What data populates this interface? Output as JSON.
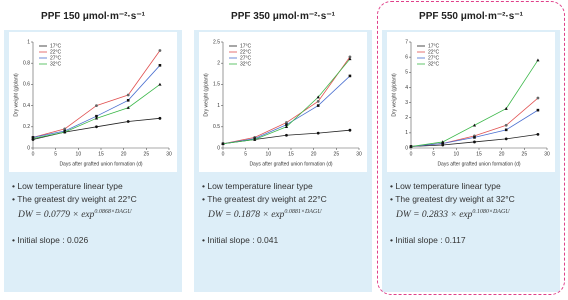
{
  "chart_data": [
    {
      "type": "line",
      "title": "PPF 150 μmol·m⁻²·s⁻¹",
      "x_label": "Days after grafted union formation (d)",
      "y_label": "Dry weight (g/plant)",
      "x": [
        0,
        7,
        14,
        21,
        28
      ],
      "xlim": [
        0,
        30
      ],
      "xticks": [
        0,
        5,
        10,
        15,
        20,
        25,
        30
      ],
      "ylim": [
        0,
        1
      ],
      "yticks": [
        0,
        0.2,
        0.4,
        0.6,
        0.8,
        1
      ],
      "series": [
        {
          "name": "17°C",
          "color": "#222222",
          "values": [
            0.08,
            0.15,
            0.2,
            0.25,
            0.28
          ]
        },
        {
          "name": "22°C",
          "color": "#e05050",
          "values": [
            0.1,
            0.18,
            0.4,
            0.5,
            0.92
          ]
        },
        {
          "name": "27°C",
          "color": "#4a6fd0",
          "values": [
            0.1,
            0.16,
            0.3,
            0.45,
            0.78
          ]
        },
        {
          "name": "32°C",
          "color": "#3cb84a",
          "values": [
            0.09,
            0.15,
            0.28,
            0.38,
            0.6
          ]
        }
      ],
      "notes": [
        "Low temperature linear type",
        "The greatest dry weight at 22°C"
      ],
      "equation": "DW = 0.0779 × exp",
      "equation_exponent": "0.0868×DAGU",
      "slope": "Initial slope : 0.026"
    },
    {
      "type": "line",
      "title": "PPF 350 μmol·m⁻²·s⁻¹",
      "x_label": "Days after grafted union formation (d)",
      "y_label": "Dry weight (g/plant)",
      "x": [
        0,
        7,
        14,
        21,
        28
      ],
      "xlim": [
        0,
        30
      ],
      "xticks": [
        0,
        5,
        10,
        15,
        20,
        25,
        30
      ],
      "ylim": [
        0,
        2.5
      ],
      "yticks": [
        0,
        0.5,
        1,
        1.5,
        2,
        2.5
      ],
      "series": [
        {
          "name": "17°C",
          "color": "#222222",
          "values": [
            0.1,
            0.2,
            0.3,
            0.35,
            0.42
          ]
        },
        {
          "name": "22°C",
          "color": "#e05050",
          "values": [
            0.1,
            0.25,
            0.6,
            1.1,
            2.15
          ]
        },
        {
          "name": "27°C",
          "color": "#4a6fd0",
          "values": [
            0.1,
            0.22,
            0.55,
            1.0,
            1.7
          ]
        },
        {
          "name": "32°C",
          "color": "#3cb84a",
          "values": [
            0.1,
            0.2,
            0.5,
            1.2,
            2.1
          ]
        }
      ],
      "notes": [
        "Low temperature linear type",
        "The greatest dry weight at 22°C"
      ],
      "equation": "DW = 0.1878 × exp",
      "equation_exponent": "0.0881×DAGU",
      "slope": "Initial slope : 0.041"
    },
    {
      "type": "line",
      "title": "PPF 550 μmol·m⁻²·s⁻¹",
      "x_label": "Days after grafted union formation (d)",
      "y_label": "Dry weight (g/plant)",
      "x": [
        0,
        7,
        14,
        21,
        28
      ],
      "xlim": [
        0,
        30
      ],
      "xticks": [
        0,
        5,
        10,
        15,
        20,
        25,
        30
      ],
      "ylim": [
        0,
        7
      ],
      "yticks": [
        0,
        1,
        2,
        3,
        4,
        5,
        6,
        7
      ],
      "series": [
        {
          "name": "17°C",
          "color": "#222222",
          "values": [
            0.1,
            0.2,
            0.4,
            0.6,
            0.9
          ]
        },
        {
          "name": "22°C",
          "color": "#e05050",
          "values": [
            0.1,
            0.3,
            0.8,
            1.5,
            3.3
          ]
        },
        {
          "name": "27°C",
          "color": "#4a6fd0",
          "values": [
            0.1,
            0.3,
            0.7,
            1.2,
            2.5
          ]
        },
        {
          "name": "32°C",
          "color": "#3cb84a",
          "values": [
            0.1,
            0.4,
            1.5,
            2.6,
            5.8
          ]
        }
      ],
      "notes": [
        "Low temperature linear type",
        "The greatest dry weight at 32°C"
      ],
      "equation": "DW = 0.2833 × exp",
      "equation_exponent": "0.1080×DAGU",
      "slope": "Initial slope : 0.117"
    }
  ]
}
